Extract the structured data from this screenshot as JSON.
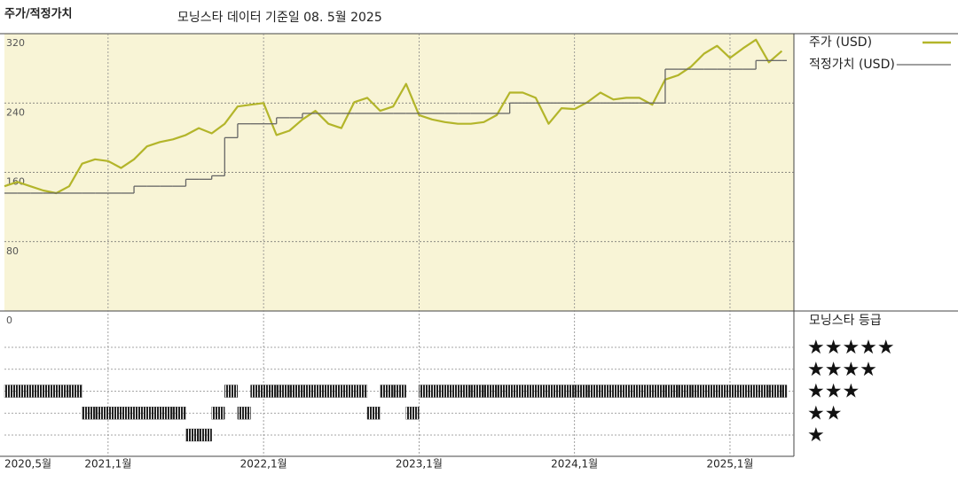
{
  "chart_data": {
    "type": "line",
    "title": "주가/적정가치",
    "subtitle": "모닝스타 데이터 기준일 08. 5월 2025",
    "x": [
      "2020-05",
      "2020-06",
      "2020-07",
      "2020-08",
      "2020-09",
      "2020-10",
      "2020-11",
      "2020-12",
      "2021-01",
      "2021-02",
      "2021-03",
      "2021-04",
      "2021-05",
      "2021-06",
      "2021-07",
      "2021-08",
      "2021-09",
      "2021-10",
      "2021-11",
      "2021-12",
      "2022-01",
      "2022-02",
      "2022-03",
      "2022-04",
      "2022-05",
      "2022-06",
      "2022-07",
      "2022-08",
      "2022-09",
      "2022-10",
      "2022-11",
      "2022-12",
      "2023-01",
      "2023-02",
      "2023-03",
      "2023-04",
      "2023-05",
      "2023-06",
      "2023-07",
      "2023-08",
      "2023-09",
      "2023-10",
      "2023-11",
      "2023-12",
      "2024-01",
      "2024-02",
      "2024-03",
      "2024-04",
      "2024-05",
      "2024-06",
      "2024-07",
      "2024-08",
      "2024-09",
      "2024-10",
      "2024-11",
      "2024-12",
      "2025-01",
      "2025-02",
      "2025-03",
      "2025-04",
      "2025-05"
    ],
    "series": [
      {
        "name": "주가 (USD)",
        "color": "#b3b52a",
        "values": [
          144,
          149,
          144,
          139,
          136,
          144,
          170,
          175,
          173,
          165,
          175,
          190,
          195,
          198,
          203,
          211,
          205,
          216,
          236,
          238,
          240,
          203,
          208,
          221,
          231,
          216,
          211,
          241,
          246,
          231,
          236,
          262,
          226,
          221,
          218,
          216,
          216,
          218,
          226,
          252,
          252,
          246,
          216,
          234,
          233,
          241,
          252,
          244,
          246,
          246,
          238,
          267,
          272,
          282,
          297,
          306,
          292,
          303,
          313,
          287,
          300
        ]
      },
      {
        "name": "적정가치 (USD)",
        "color": "#666666",
        "step": true,
        "values": [
          136,
          136,
          136,
          136,
          136,
          136,
          136,
          136,
          136,
          136,
          144,
          144,
          144,
          144,
          152,
          152,
          156,
          200,
          216,
          216,
          216,
          223,
          223,
          228,
          228,
          228,
          228,
          228,
          228,
          228,
          228,
          228,
          228,
          228,
          228,
          228,
          228,
          228,
          228,
          240,
          240,
          240,
          240,
          240,
          240,
          240,
          240,
          240,
          240,
          240,
          240,
          279,
          279,
          279,
          279,
          279,
          279,
          279,
          289,
          289,
          289
        ]
      }
    ],
    "xlim": [
      "2020-05",
      "2025-06"
    ],
    "xticks": [
      {
        "value": "2020-05",
        "label": "2020,5월"
      },
      {
        "value": "2021-01",
        "label": "2021,1월"
      },
      {
        "value": "2022-01",
        "label": "2022,1월"
      },
      {
        "value": "2023-01",
        "label": "2023,1월"
      },
      {
        "value": "2024-01",
        "label": "2024,1월"
      },
      {
        "value": "2025-01",
        "label": "2025,1월"
      }
    ],
    "ylim": [
      0,
      320
    ],
    "yticks": [
      0,
      80,
      160,
      240,
      320
    ],
    "grid": true,
    "legend": "right",
    "rating": {
      "title": "모닝스타 등급",
      "color": "#222222",
      "levels": [
        {
          "value": 5,
          "label": "★★★★★"
        },
        {
          "value": 4,
          "label": "★★★★"
        },
        {
          "value": 3,
          "label": "★★★"
        },
        {
          "value": 2,
          "label": "★★"
        },
        {
          "value": 1,
          "label": "★"
        }
      ],
      "values": [
        3,
        3,
        3,
        3,
        3,
        3,
        2,
        2,
        2,
        2,
        2,
        2,
        2,
        2,
        1,
        1,
        2,
        3,
        2,
        3,
        3,
        3,
        3,
        3,
        3,
        3,
        3,
        3,
        2,
        3,
        3,
        2,
        3,
        3,
        3,
        3,
        3,
        3,
        3,
        3,
        3,
        3,
        3,
        3,
        3,
        3,
        3,
        3,
        3,
        3,
        3,
        3,
        3,
        3,
        3,
        3,
        3,
        3,
        3,
        3,
        3
      ]
    }
  }
}
